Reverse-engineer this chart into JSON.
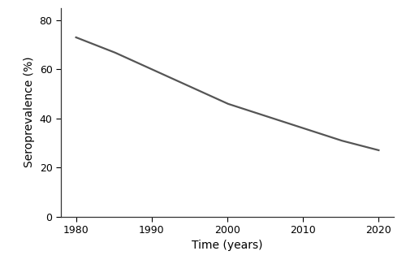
{
  "x": [
    1980,
    1985,
    1990,
    1995,
    2000,
    2005,
    2010,
    2015,
    2020
  ],
  "y": [
    73,
    67,
    60,
    53,
    46,
    41,
    36,
    31,
    27
  ],
  "xlim": [
    1978,
    2022
  ],
  "ylim": [
    0,
    85
  ],
  "xticks": [
    1980,
    1990,
    2000,
    2010,
    2020
  ],
  "yticks": [
    0,
    20,
    40,
    60,
    80
  ],
  "xlabel": "Time (years)",
  "ylabel": "Seroprevalence (%)",
  "line_color": "#555555",
  "line_width": 1.6,
  "background_color": "#ffffff",
  "xlabel_fontsize": 10,
  "ylabel_fontsize": 10,
  "tick_fontsize": 9
}
